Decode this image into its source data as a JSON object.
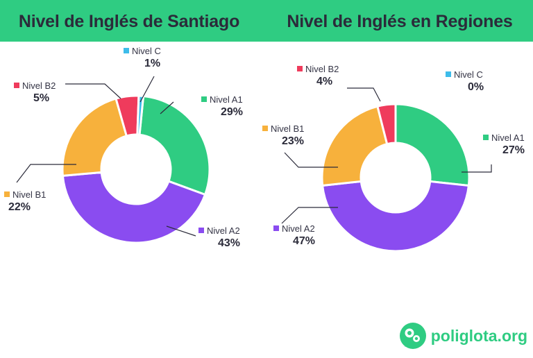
{
  "chart_data": [
    {
      "type": "pie",
      "style": "donut",
      "title": "Nivel de Inglés de Santiago",
      "slices": [
        {
          "label": "Nivel A1",
          "value": 29,
          "value_label": "29%",
          "color": "#2fcc82"
        },
        {
          "label": "Nivel A2",
          "value": 43,
          "value_label": "43%",
          "color": "#8a4cf0"
        },
        {
          "label": "Nivel B1",
          "value": 22,
          "value_label": "22%",
          "color": "#f7b13c"
        },
        {
          "label": "Nivel B2",
          "value": 5,
          "value_label": "5%",
          "color": "#ef3b5c"
        },
        {
          "label": "Nivel C",
          "value": 1,
          "value_label": "1%",
          "color": "#3dbcea"
        }
      ]
    },
    {
      "type": "pie",
      "style": "donut",
      "title": "Nivel de Inglés en Regiones",
      "slices": [
        {
          "label": "Nivel A1",
          "value": 27,
          "value_label": "27%",
          "color": "#2fcc82"
        },
        {
          "label": "Nivel A2",
          "value": 47,
          "value_label": "47%",
          "color": "#8a4cf0"
        },
        {
          "label": "Nivel B1",
          "value": 23,
          "value_label": "23%",
          "color": "#f7b13c"
        },
        {
          "label": "Nivel B2",
          "value": 4,
          "value_label": "4%",
          "color": "#ef3b5c"
        },
        {
          "label": "Nivel C",
          "value": 0,
          "value_label": "0%",
          "color": "#3dbcea",
          "value_color": "#ef3b5c"
        }
      ]
    }
  ],
  "brand": {
    "name": "poliglota.org",
    "color": "#2fcc82"
  }
}
